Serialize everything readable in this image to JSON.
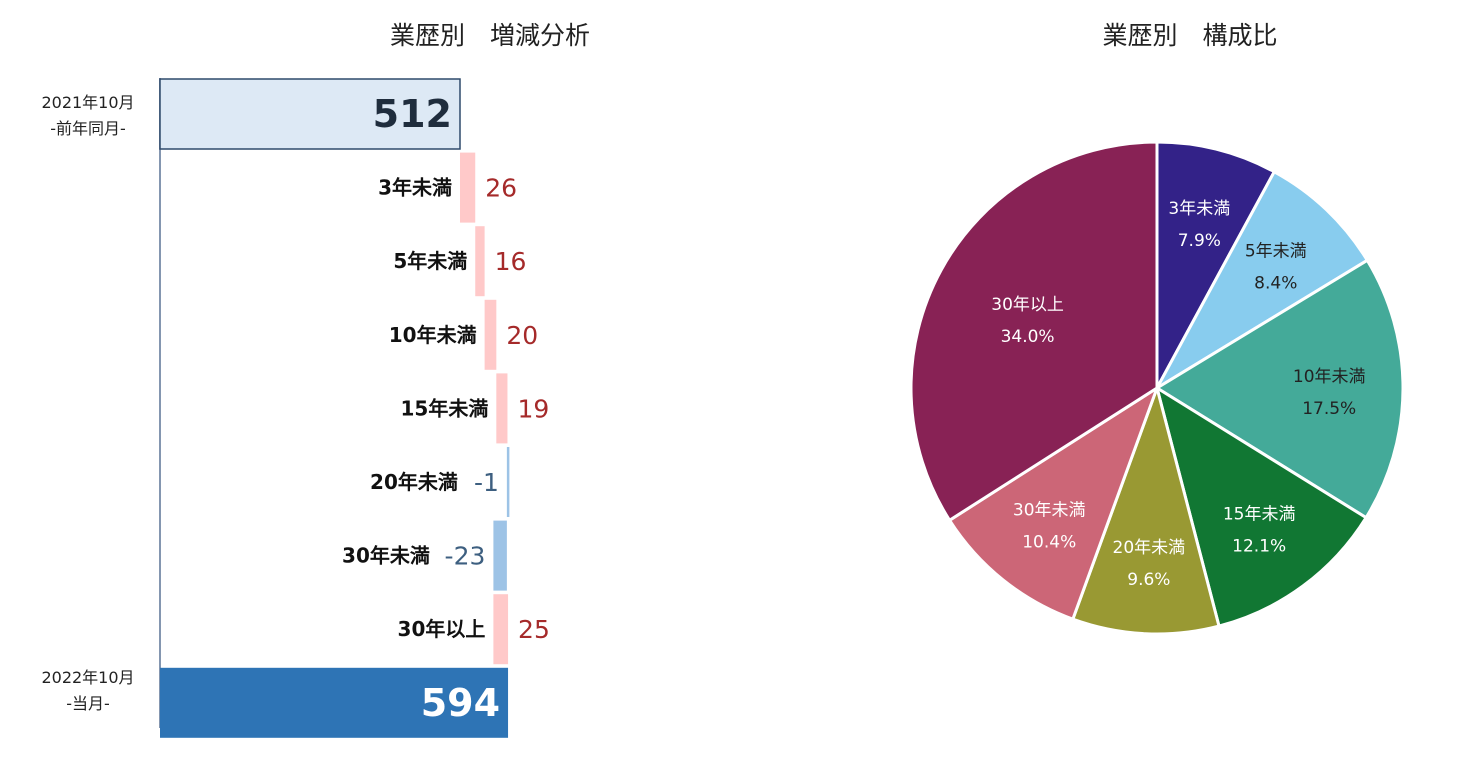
{
  "chart_data": [
    {
      "type": "bar",
      "subtype": "waterfall",
      "orientation": "horizontal",
      "title": "業歴別　増減分析",
      "start": {
        "label_line1": "2021年10月",
        "label_line2": "-前年同月-",
        "value": 512,
        "value_label": "512"
      },
      "end": {
        "label_line1": "2022年10月",
        "label_line2": "-当月-",
        "value": 594,
        "value_label": "594"
      },
      "steps": [
        {
          "category": "3年未満",
          "value": 26,
          "value_label": "26"
        },
        {
          "category": "5年未満",
          "value": 16,
          "value_label": "16"
        },
        {
          "category": "10年未満",
          "value": 20,
          "value_label": "20"
        },
        {
          "category": "15年未満",
          "value": 19,
          "value_label": "19"
        },
        {
          "category": "20年未満",
          "value": -1,
          "value_label": "-1"
        },
        {
          "category": "30年未満",
          "value": -23,
          "value_label": "-23"
        },
        {
          "category": "30年以上",
          "value": 25,
          "value_label": "25"
        }
      ],
      "colors": {
        "start_fill": "#dde9f5",
        "start_stroke": "#2f4a6b",
        "end_fill": "#2e74b5",
        "increase_fill": "#ffc9c9",
        "decrease_fill": "#9dc3e6",
        "increase_text": "#a52a2a",
        "decrease_text": "#3d5f80",
        "axis": "#8496b0"
      }
    },
    {
      "type": "pie",
      "title": "業歴別　構成比",
      "slices": [
        {
          "label": "3年未満",
          "percent": 7.9,
          "percent_label": "7.9%",
          "color": "#332288",
          "text_color": "#ffffff"
        },
        {
          "label": "5年未満",
          "percent": 8.4,
          "percent_label": "8.4%",
          "color": "#88ccee",
          "text_color": "#222222"
        },
        {
          "label": "10年未満",
          "percent": 17.5,
          "percent_label": "17.5%",
          "color": "#44aa99",
          "text_color": "#222222"
        },
        {
          "label": "15年未満",
          "percent": 12.1,
          "percent_label": "12.1%",
          "color": "#117733",
          "text_color": "#ffffff"
        },
        {
          "label": "20年未満",
          "percent": 9.6,
          "percent_label": "9.6%",
          "color": "#999933",
          "text_color": "#ffffff"
        },
        {
          "label": "30年未満",
          "percent": 10.4,
          "percent_label": "10.4%",
          "color": "#cc6677",
          "text_color": "#ffffff"
        },
        {
          "label": "30年以上",
          "percent": 34.0,
          "percent_label": "34.0%",
          "color": "#882255",
          "text_color": "#ffffff"
        }
      ]
    }
  ]
}
